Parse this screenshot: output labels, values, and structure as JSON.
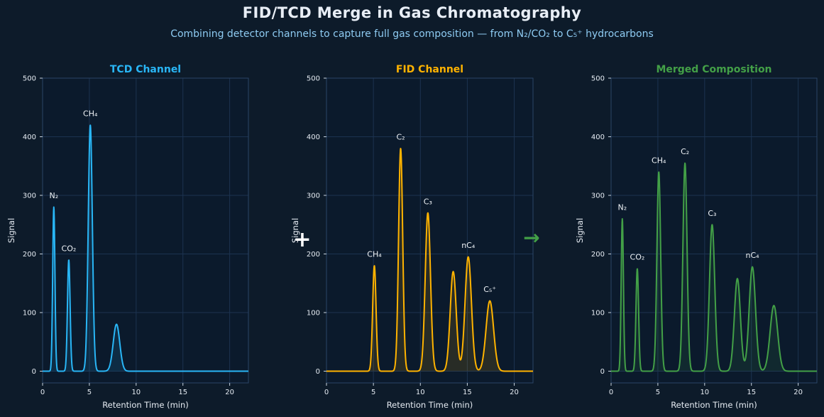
{
  "title": "FID/TCD Merge in Gas Chromatography",
  "subtitle": "Combining detector channels to capture full gas composition — from N₂/CO₂ to C₅⁺ hydrocarbons",
  "operators": {
    "plus": "+",
    "arrow": "→"
  },
  "colors": {
    "background": "#0d1b2a",
    "plot_background": "#0b1a2c",
    "spine": "#2a4466",
    "grid": "#1c3350",
    "tcd": "#29b6f6",
    "fid": "#ffb300",
    "merged": "#43a047",
    "plus": "#ffffff",
    "arrow": "#43a047"
  },
  "chart_data": [
    {
      "type": "line",
      "title": "TCD Channel",
      "xlabel": "Retention Time (min)",
      "ylabel": "Signal",
      "xlim": [
        0,
        22
      ],
      "ylim": [
        -20,
        500
      ],
      "xticks": [
        0,
        5,
        10,
        15,
        20
      ],
      "yticks": [
        0,
        100,
        200,
        300,
        400,
        500
      ],
      "grid": true,
      "color": "#29b6f6",
      "peaks": [
        {
          "label": "N₂",
          "time": 1.2,
          "height": 280,
          "width": 0.12
        },
        {
          "label": "CO₂",
          "time": 2.8,
          "height": 190,
          "width": 0.14
        },
        {
          "label": "CH₄",
          "time": 5.1,
          "height": 420,
          "width": 0.22
        },
        {
          "label": "",
          "time": 7.9,
          "height": 80,
          "width": 0.35
        }
      ]
    },
    {
      "type": "line",
      "title": "FID Channel",
      "xlabel": "Retention Time (min)",
      "ylabel": "Signal",
      "xlim": [
        0,
        22
      ],
      "ylim": [
        -20,
        500
      ],
      "xticks": [
        0,
        5,
        10,
        15,
        20
      ],
      "yticks": [
        0,
        100,
        200,
        300,
        400,
        500
      ],
      "grid": true,
      "color": "#ffb300",
      "peaks": [
        {
          "label": "CH₄",
          "time": 5.1,
          "height": 180,
          "width": 0.18
        },
        {
          "label": "C₂",
          "time": 7.9,
          "height": 380,
          "width": 0.22
        },
        {
          "label": "C₃",
          "time": 10.8,
          "height": 270,
          "width": 0.28
        },
        {
          "label": "",
          "time": 13.5,
          "height": 170,
          "width": 0.32
        },
        {
          "label": "nC₄",
          "time": 15.1,
          "height": 195,
          "width": 0.34
        },
        {
          "label": "C₅⁺",
          "time": 17.4,
          "height": 120,
          "width": 0.4
        }
      ]
    },
    {
      "type": "line",
      "title": "Merged Composition",
      "xlabel": "Retention Time (min)",
      "ylabel": "Signal",
      "xlim": [
        0,
        22
      ],
      "ylim": [
        -20,
        500
      ],
      "xticks": [
        0,
        5,
        10,
        15,
        20
      ],
      "yticks": [
        0,
        100,
        200,
        300,
        400,
        500
      ],
      "grid": true,
      "color": "#43a047",
      "peaks": [
        {
          "label": "N₂",
          "time": 1.2,
          "height": 260,
          "width": 0.12
        },
        {
          "label": "CO₂",
          "time": 2.8,
          "height": 175,
          "width": 0.14
        },
        {
          "label": "CH₄",
          "time": 5.1,
          "height": 340,
          "width": 0.2
        },
        {
          "label": "C₂",
          "time": 7.9,
          "height": 355,
          "width": 0.22
        },
        {
          "label": "C₃",
          "time": 10.8,
          "height": 250,
          "width": 0.28
        },
        {
          "label": "",
          "time": 13.5,
          "height": 158,
          "width": 0.32
        },
        {
          "label": "nC₄",
          "time": 15.1,
          "height": 178,
          "width": 0.34
        },
        {
          "label": "",
          "time": 17.4,
          "height": 112,
          "width": 0.4
        }
      ]
    }
  ]
}
